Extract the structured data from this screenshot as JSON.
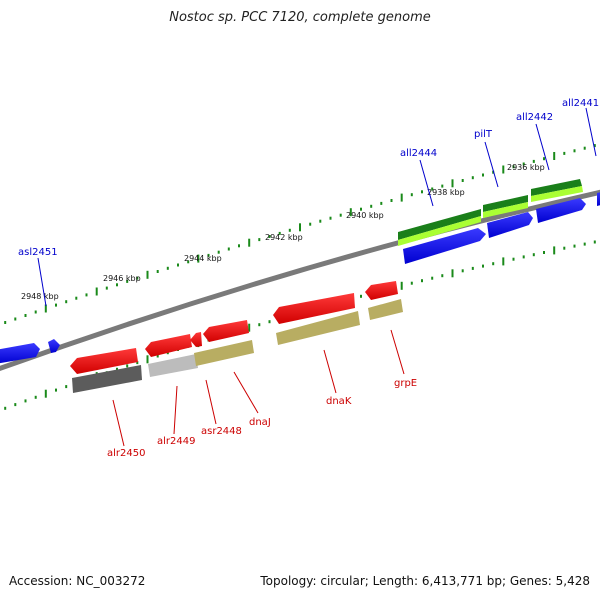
{
  "title": "Nostoc sp. PCC 7120, complete genome",
  "footer": {
    "accession": "Accession: NC_003272",
    "summary": "Topology: circular; Length: 6,413,771 bp; Genes: 5,428"
  },
  "colors": {
    "forward_label": "#0000cc",
    "reverse_label": "#cc0000",
    "backbone": "#7a7a7a",
    "tick": "#1a8a1a"
  },
  "scale_ticks": [
    "2948 kbp",
    "2946 kbp",
    "2944 kbp",
    "2942 kbp",
    "2940 kbp",
    "2938 kbp",
    "2936 kbp"
  ],
  "forward_labels": [
    "asl2451",
    "all2444",
    "pilT",
    "all2442",
    "all2441"
  ],
  "reverse_labels": [
    "alr2450",
    "alr2449",
    "asr2448",
    "dnaJ",
    "dnaK",
    "grpE"
  ]
}
